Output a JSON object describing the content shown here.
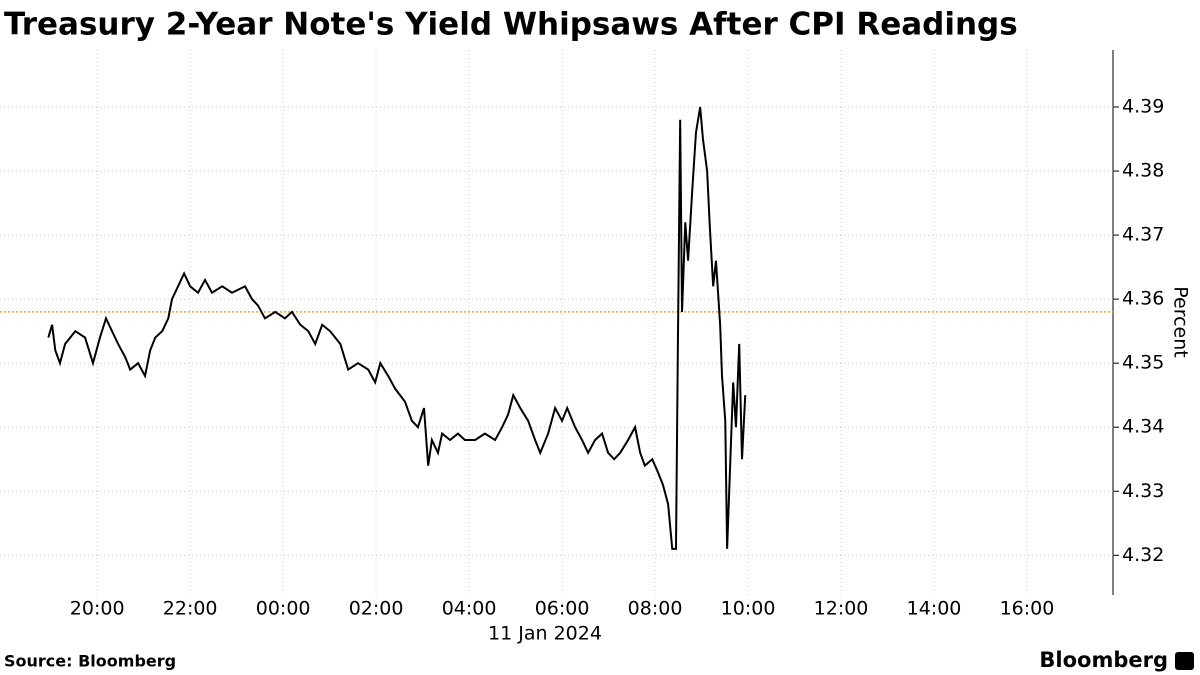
{
  "chart_data": {
    "type": "line",
    "title": "Treasury 2-Year Note's Yield Whipsaws After CPI Readings",
    "ylabel": "Percent",
    "xlabel": "11 Jan 2024",
    "source": "Source: Bloomberg",
    "brand": "Bloomberg",
    "x": [
      -5.05,
      -4.97,
      -4.9,
      -4.8,
      -4.69,
      -4.47,
      -4.26,
      -4.09,
      -3.94,
      -3.81,
      -3.68,
      -3.55,
      -3.4,
      -3.29,
      -3.12,
      -2.97,
      -2.86,
      -2.75,
      -2.6,
      -2.47,
      -2.39,
      -2.26,
      -2.13,
      -2.0,
      -1.83,
      -1.68,
      -1.53,
      -1.31,
      -1.1,
      -0.82,
      -0.67,
      -0.54,
      -0.39,
      -0.17,
      0.04,
      0.19,
      0.37,
      0.54,
      0.69,
      0.84,
      1.01,
      1.23,
      1.4,
      1.61,
      1.83,
      1.98,
      2.09,
      2.26,
      2.41,
      2.62,
      2.77,
      2.9,
      3.03,
      3.12,
      3.2,
      3.33,
      3.42,
      3.59,
      3.76,
      3.91,
      4.13,
      4.34,
      4.56,
      4.71,
      4.84,
      4.95,
      5.1,
      5.27,
      5.42,
      5.53,
      5.7,
      5.85,
      6.0,
      6.11,
      6.28,
      6.43,
      6.56,
      6.71,
      6.86,
      6.99,
      7.12,
      7.25,
      7.42,
      7.57,
      7.68,
      7.78,
      7.94,
      8.06,
      8.17,
      8.28,
      8.37,
      8.45,
      8.49,
      8.54,
      8.58,
      8.65,
      8.71,
      8.8,
      8.88,
      8.97,
      9.03,
      9.12,
      9.18,
      9.25,
      9.31,
      9.4,
      9.44,
      9.51,
      9.55,
      9.61,
      9.68,
      9.74,
      9.81,
      9.87,
      9.94
    ],
    "series": [
      {
        "color": "#000000",
        "values": [
          4.354,
          4.356,
          4.352,
          4.35,
          4.353,
          4.355,
          4.354,
          4.35,
          4.354,
          4.357,
          4.355,
          4.353,
          4.351,
          4.349,
          4.35,
          4.348,
          4.352,
          4.354,
          4.355,
          4.357,
          4.36,
          4.362,
          4.364,
          4.362,
          4.361,
          4.363,
          4.361,
          4.362,
          4.361,
          4.362,
          4.36,
          4.359,
          4.357,
          4.358,
          4.357,
          4.358,
          4.356,
          4.355,
          4.353,
          4.356,
          4.355,
          4.353,
          4.349,
          4.35,
          4.349,
          4.347,
          4.35,
          4.348,
          4.346,
          4.344,
          4.341,
          4.34,
          4.343,
          4.334,
          4.338,
          4.336,
          4.339,
          4.338,
          4.339,
          4.338,
          4.338,
          4.339,
          4.338,
          4.34,
          4.342,
          4.345,
          4.343,
          4.341,
          4.338,
          4.336,
          4.339,
          4.343,
          4.341,
          4.343,
          4.34,
          4.338,
          4.336,
          4.338,
          4.339,
          4.336,
          4.335,
          4.336,
          4.338,
          4.34,
          4.336,
          4.334,
          4.335,
          4.333,
          4.331,
          4.328,
          4.321,
          4.321,
          4.352,
          4.388,
          4.358,
          4.372,
          4.366,
          4.377,
          4.386,
          4.39,
          4.385,
          4.38,
          4.371,
          4.362,
          4.366,
          4.356,
          4.348,
          4.341,
          4.321,
          4.333,
          4.347,
          4.34,
          4.353,
          4.335,
          4.345
        ]
      }
    ],
    "reference_line": 4.358,
    "reference_color": "#f5a623",
    "xlim": [
      -6.09,
      17.85
    ],
    "xticks": [
      {
        "value": -4,
        "label": "20:00"
      },
      {
        "value": -2,
        "label": "22:00"
      },
      {
        "value": 0,
        "label": "00:00"
      },
      {
        "value": 2,
        "label": "02:00"
      },
      {
        "value": 4,
        "label": "04:00"
      },
      {
        "value": 6,
        "label": "06:00"
      },
      {
        "value": 8,
        "label": "08:00"
      },
      {
        "value": 10,
        "label": "10:00"
      },
      {
        "value": 12,
        "label": "12:00"
      },
      {
        "value": 14,
        "label": "14:00"
      },
      {
        "value": 16,
        "label": "16:00"
      }
    ],
    "ylim": [
      4.3138,
      4.3989
    ],
    "yticks": [
      4.32,
      4.33,
      4.34,
      4.35,
      4.36,
      4.37,
      4.38,
      4.39
    ],
    "grid": true
  }
}
